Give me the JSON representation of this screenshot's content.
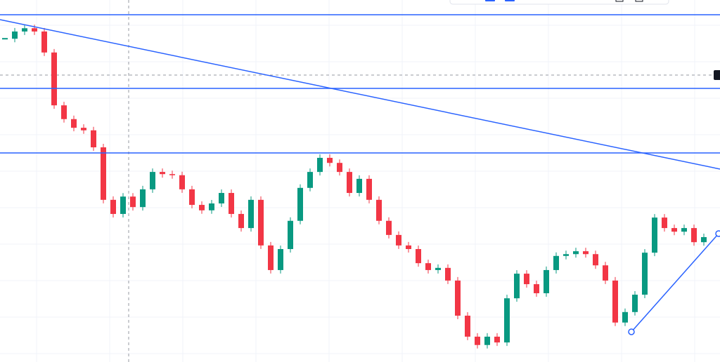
{
  "chart_data": {
    "type": "candlestick",
    "up_color": "#089981",
    "down_color": "#f23645",
    "ylim": [
      0,
      100
    ],
    "close": [
      89.3,
      91.3,
      92.2,
      91.3,
      85.5,
      70.9,
      67.1,
      64.7,
      64.0,
      59.3,
      44.8,
      40.9,
      45.7,
      42.8,
      47.7,
      52.5,
      51.9,
      51.6,
      47.7,
      43.4,
      41.9,
      43.8,
      46.7,
      40.9,
      37.0,
      44.8,
      32.2,
      25.4,
      31.2,
      39.0,
      48.1,
      52.5,
      56.4,
      55.0,
      52.5,
      46.7,
      50.6,
      44.8,
      39.0,
      35.1,
      32.2,
      31.2,
      27.3,
      25.4,
      26.0,
      22.5,
      12.8,
      7.0,
      4.7,
      7.0,
      5.4,
      17.6,
      24.4,
      21.5,
      19.0,
      25.4,
      29.3,
      29.8,
      30.6,
      29.8,
      26.7,
      22.5,
      10.9,
      13.8,
      18.6,
      30.2,
      39.9,
      37.0,
      36.0,
      37.0,
      33.1,
      34.5
    ]
  }
}
